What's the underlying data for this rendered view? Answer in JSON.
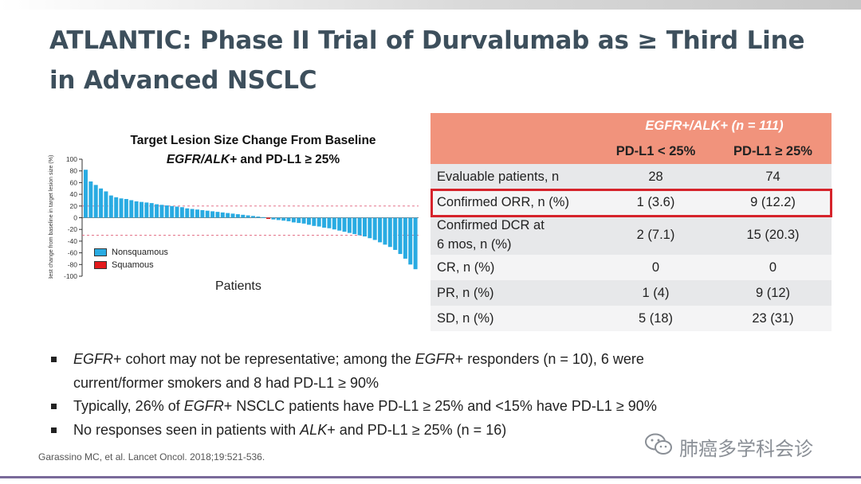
{
  "title": {
    "line1": "ATLANTIC: Phase II Trial of Durvalumab as ≥ Third Line",
    "line2": "in Advanced NSCLC"
  },
  "chart": {
    "title_line1": "Target Lesion Size Change From Baseline",
    "title_line2_italic": "EGFR/ALK+",
    "title_line2_rest": " and PD-L1 ≥ 25%",
    "xlabel": "Patients",
    "legend": [
      {
        "label": "Nonsquamous",
        "color": "#29abe2"
      },
      {
        "label": "Squamous",
        "color": "#e31a1c"
      }
    ]
  },
  "chart_data": {
    "type": "bar",
    "title": "Target Lesion Size Change From Baseline EGFR/ALK+ and PD-L1 ≥ 25%",
    "xlabel": "Patients",
    "ylabel": "Best change from baseline in target lesion size (%)",
    "ylim": [
      -100,
      100
    ],
    "yticks": [
      100,
      80,
      60,
      40,
      20,
      0,
      -20,
      -40,
      -60,
      -80,
      -100
    ],
    "reference_lines": [
      20,
      -30
    ],
    "values": [
      82,
      62,
      56,
      50,
      45,
      38,
      35,
      33,
      32,
      30,
      28,
      27,
      26,
      25,
      23,
      22,
      21,
      20,
      19,
      18,
      16,
      15,
      14,
      13,
      12,
      11,
      10,
      9,
      8,
      7,
      6,
      5,
      4,
      3,
      2,
      1,
      -2,
      -3,
      -4,
      -5,
      -6,
      -8,
      -9,
      -10,
      -12,
      -14,
      -15,
      -17,
      -18,
      -20,
      -22,
      -24,
      -26,
      -28,
      -30,
      -32,
      -35,
      -38,
      -42,
      -46,
      -50,
      -55,
      -62,
      -70,
      -80,
      -88
    ],
    "squamous_index": 36
  },
  "table": {
    "group_header": "EGFR+/ALK+ (n = 111)",
    "col1": "PD-L1 < 25%",
    "col2": "PD-L1 ≥ 25%",
    "rows": [
      {
        "label": "Evaluable patients, n",
        "c1": "28",
        "c2": "74"
      },
      {
        "label": "Confirmed ORR, n (%)",
        "c1": "1 (3.6)",
        "c2": "9 (12.2)"
      },
      {
        "label1": "Confirmed DCR at",
        "label2": "6 mos, n (%)",
        "c1": "2 (7.1)",
        "c2": "15 (20.3)"
      },
      {
        "label": "CR, n (%)",
        "c1": "0",
        "c2": "0"
      },
      {
        "label": "PR, n (%)",
        "c1": "1 (4)",
        "c2": "9 (12)"
      },
      {
        "label": "SD, n (%)",
        "c1": "5 (18)",
        "c2": "23 (31)"
      }
    ]
  },
  "bullets": {
    "b1_em1": "EGFR",
    "b1_t1": "+ cohort may not be representative; among the ",
    "b1_em2": "EGFR",
    "b1_t2": "+ responders (n = 10), 6 were",
    "b1_line2": "current/former smokers and 8 had PD-L1 ≥ 90%",
    "b2_t1": "Typically, 26% of ",
    "b2_em": "EGFR",
    "b2_t2": "+ NSCLC patients have PD-L1 ≥ 25% and <15% have PD-L1 ≥ 90%",
    "b3_t1": "No responses seen in patients with ",
    "b3_em": "ALK",
    "b3_t2": "+ and PD-L1 ≥ 25% (n = 16)"
  },
  "citation": "Garassino MC, et al. Lancet Oncol. 2018;19:521-536.",
  "watermark": {
    "icon": "wechat-icon",
    "text": "肺癌多学科会诊"
  },
  "colors": {
    "accent_header": "#f1937c",
    "highlight": "#d6232b",
    "title": "#3d4f5c"
  }
}
